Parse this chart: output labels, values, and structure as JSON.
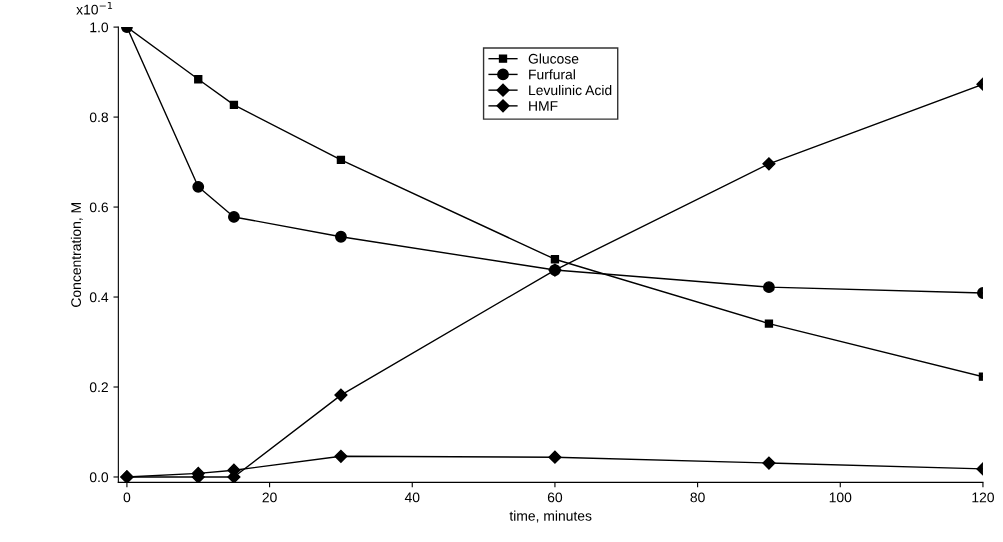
{
  "chart_data": {
    "type": "line",
    "xlabel": "time, minutes",
    "ylabel": "Concentration, M",
    "x": [
      0,
      10,
      15,
      30,
      60,
      90,
      120
    ],
    "series": [
      {
        "name": "Glucose",
        "color": "#000000",
        "marker": "square",
        "values": [
          1.0,
          0.884,
          0.827,
          0.705,
          0.484,
          0.341,
          0.223
        ]
      },
      {
        "name": "Furfural",
        "color": "#000000",
        "marker": "circle",
        "values": [
          1.0,
          0.645,
          0.578,
          0.534,
          0.46,
          0.422,
          0.409
        ]
      },
      {
        "name": "Levulinic Acid",
        "color": "#000000",
        "marker": "diamond",
        "values": [
          0.0,
          0.0,
          0.0,
          0.182,
          0.46,
          0.696,
          0.873
        ]
      },
      {
        "name": "HMF",
        "color": "#000000",
        "marker": "diamond",
        "values": [
          0.0,
          0.008,
          0.015,
          0.046,
          0.044,
          0.031,
          0.018
        ]
      }
    ],
    "xlim": [
      -1.2,
      120
    ],
    "xticks": [
      0,
      20,
      40,
      60,
      80,
      100,
      120
    ],
    "ylim": [
      -0.012,
      1.0
    ],
    "yticks": [
      {
        "value": 0,
        "label": "0.0"
      },
      0.2,
      0.4,
      0.6,
      0.8,
      {
        "value": 1.0,
        "label": "1.0"
      }
    ],
    "annotations": [
      "x10$^{−1}$"
    ],
    "grid": false,
    "legend": "top",
    "line_style": "solid"
  }
}
